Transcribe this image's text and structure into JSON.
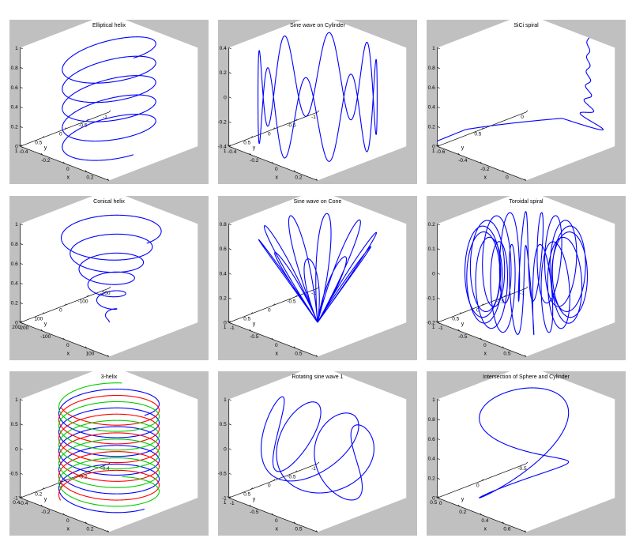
{
  "chart_data": [
    {
      "type": "line3d",
      "name": "elliptical-helix",
      "title": "Elliptical helix",
      "xlabel": "x",
      "ylabel": "y",
      "xticks": [
        "-0.4",
        "-0.2",
        "0",
        "0.2",
        "0.4"
      ],
      "xlim": [
        -0.4,
        0.4
      ],
      "yticks": [
        "-1",
        "-0.5",
        "0",
        "0.5",
        "1"
      ],
      "ylim": [
        -1,
        1
      ],
      "zticks": [
        "0",
        "0.2",
        "0.4",
        "0.6",
        "0.8",
        "1"
      ],
      "zlim": [
        0,
        1
      ],
      "series": [
        {
          "color": "#0000ff"
        }
      ]
    },
    {
      "type": "line3d",
      "name": "sine-wave-on-cylinder",
      "title": "Sine wave on Cylinder",
      "xlabel": "x",
      "ylabel": "y",
      "xticks": [
        "-0.4",
        "-0.2",
        "0",
        "0.2",
        "0.4"
      ],
      "xlim": [
        -0.4,
        0.4
      ],
      "yticks": [
        "-1",
        "-0.5",
        "0",
        "0.5",
        "1"
      ],
      "ylim": [
        -1,
        1
      ],
      "zticks": [
        "-0.4",
        "-0.2",
        "0",
        "0.2",
        "0.4"
      ],
      "zlim": [
        -0.4,
        0.4
      ],
      "series": [
        {
          "color": "#0000ff"
        }
      ]
    },
    {
      "type": "line3d",
      "name": "sici-spiral",
      "title": "SiCi spiral",
      "xlabel": "x",
      "ylabel": "y",
      "xticks": [
        "-0.6",
        "-0.4",
        "-0.2",
        "0",
        "0.2"
      ],
      "xlim": [
        -0.6,
        0.2
      ],
      "yticks": [
        "0",
        "0.5",
        "1"
      ],
      "ylim": [
        0,
        1
      ],
      "zticks": [
        "0",
        "0.2",
        "0.4",
        "0.6",
        "0.8",
        "1"
      ],
      "zlim": [
        0,
        1
      ],
      "series": [
        {
          "color": "#0000ff"
        }
      ]
    },
    {
      "type": "line3d",
      "name": "conical-helix",
      "title": "Conical helix",
      "xlabel": "x",
      "ylabel": "y",
      "xticks": [
        "-200",
        "-100",
        "0",
        "100",
        "200"
      ],
      "xlim": [
        -200,
        200
      ],
      "yticks": [
        "-200",
        "-100",
        "0",
        "100",
        "200"
      ],
      "ylim": [
        -200,
        200
      ],
      "zticks": [
        "0",
        "0.2",
        "0.4",
        "0.6",
        "0.8",
        "1"
      ],
      "zlim": [
        0,
        1
      ],
      "series": [
        {
          "color": "#0000ff"
        }
      ]
    },
    {
      "type": "line3d",
      "name": "sine-wave-on-cone",
      "title": "Sine wave on Cone",
      "xlabel": "x",
      "ylabel": "y",
      "xticks": [
        "-1",
        "-0.5",
        "0",
        "0.5",
        "1"
      ],
      "xlim": [
        -1,
        1
      ],
      "yticks": [
        "-1",
        "-0.5",
        "0",
        "0.5",
        "1"
      ],
      "ylim": [
        -1,
        1
      ],
      "zticks": [
        "0",
        "0.2",
        "0.4",
        "0.6",
        "0.8"
      ],
      "zlim": [
        0,
        0.8
      ],
      "series": [
        {
          "color": "#0000ff"
        }
      ]
    },
    {
      "type": "line3d",
      "name": "toroidal-spiral",
      "title": "Toroidal spiral",
      "xlabel": "x",
      "ylabel": "y",
      "xticks": [
        "-1",
        "-0.5",
        "0",
        "0.5",
        "1"
      ],
      "xlim": [
        -1,
        1
      ],
      "yticks": [
        "-1",
        "-0.5",
        "0",
        "0.5",
        "1"
      ],
      "ylim": [
        -1,
        1
      ],
      "zticks": [
        "-0.2",
        "-0.1",
        "0",
        "0.1",
        "0.2"
      ],
      "zlim": [
        -0.2,
        0.2
      ],
      "series": [
        {
          "color": "#0000ff"
        }
      ]
    },
    {
      "type": "line3d",
      "name": "three-helix",
      "title": "3-helix",
      "xlabel": "x",
      "ylabel": "y",
      "xticks": [
        "-0.4",
        "-0.2",
        "0",
        "0.2",
        "0.4"
      ],
      "xlim": [
        -0.4,
        0.4
      ],
      "yticks": [
        "-0.4",
        "-0.2",
        "0",
        "0.2",
        "0.4"
      ],
      "ylim": [
        -0.4,
        0.4
      ],
      "zticks": [
        "-1",
        "-0.5",
        "0",
        "0.5",
        "1"
      ],
      "zlim": [
        -1,
        1
      ],
      "series": [
        {
          "color": "#0000ff"
        },
        {
          "color": "#ff0000"
        },
        {
          "color": "#00cc00"
        }
      ]
    },
    {
      "type": "line3d",
      "name": "rotating-sine-wave",
      "title": "Rotating sine wave 1",
      "xlabel": "x",
      "ylabel": "y",
      "xticks": [
        "-1",
        "-0.5",
        "0",
        "0.5",
        "1"
      ],
      "xlim": [
        -1,
        1
      ],
      "yticks": [
        "-1",
        "-0.5",
        "0",
        "0.5",
        "1"
      ],
      "ylim": [
        -1,
        1
      ],
      "zticks": [
        "-1",
        "-0.5",
        "0",
        "0.5",
        "1"
      ],
      "zlim": [
        -1,
        1
      ],
      "series": [
        {
          "color": "#0000ff"
        }
      ]
    },
    {
      "type": "line3d",
      "name": "sphere-cylinder-intersection",
      "title": "Intersection of Sphere and Cylinder",
      "xlabel": "x",
      "ylabel": "y",
      "xticks": [
        "0",
        "0.2",
        "0.4",
        "0.6",
        "0.8"
      ],
      "xlim": [
        0,
        0.8
      ],
      "yticks": [
        "-0.5",
        "0",
        "0.5"
      ],
      "ylim": [
        -0.5,
        0.5
      ],
      "zticks": [
        "0",
        "0.2",
        "0.4",
        "0.6",
        "0.8",
        "1"
      ],
      "zlim": [
        0,
        1
      ],
      "series": [
        {
          "color": "#0000ff"
        }
      ]
    }
  ]
}
